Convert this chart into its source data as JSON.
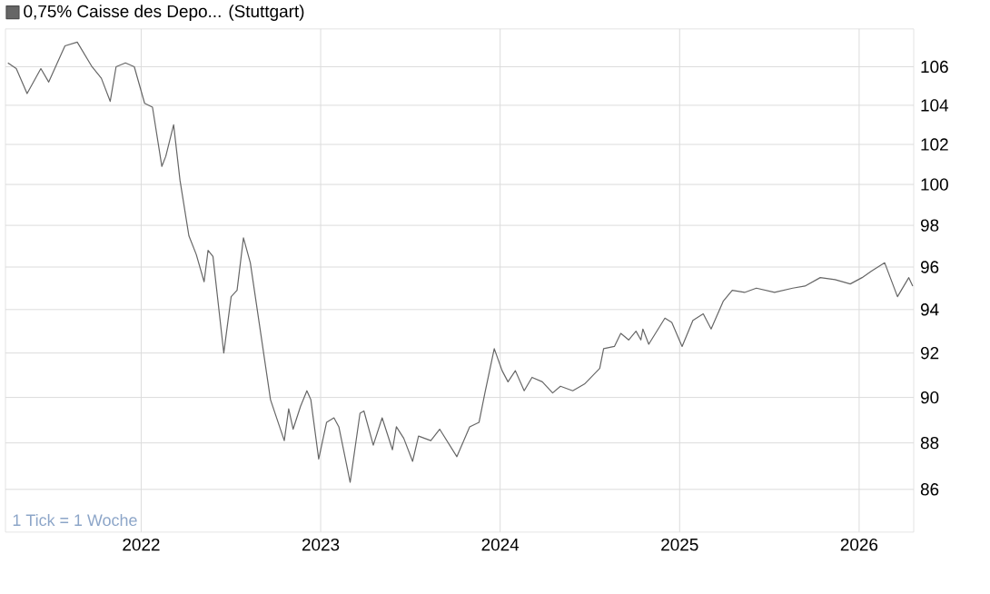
{
  "chart_data": {
    "type": "line",
    "log": "y",
    "grid": true,
    "legend": "top left",
    "annotations": [
      "1 Tick = 1 Woche"
    ],
    "xlim": [
      "2021-03-31",
      "2026-04-22"
    ],
    "ylim": [
      84.2,
      108
    ],
    "xticks": [
      "2022",
      "2023",
      "2024",
      "2025",
      "2026"
    ],
    "yticks": [
      86,
      88,
      90,
      92,
      94,
      96,
      98,
      100,
      102,
      104,
      106
    ],
    "series": [
      {
        "name": "0,75% Caisse des Depo... (Stuttgart)",
        "color": "#666666",
        "x": [
          "2021-04-05",
          "2021-04-22",
          "2021-05-14",
          "2021-06-11",
          "2021-06-27",
          "2021-07-30",
          "2021-08-24",
          "2021-09-23",
          "2021-10-12",
          "2021-10-30",
          "2021-11-11",
          "2021-11-30",
          "2021-12-18",
          "2022-01-08",
          "2022-01-24",
          "2022-02-12",
          "2022-02-20",
          "2022-03-08",
          "2022-03-21",
          "2022-04-08",
          "2022-04-23",
          "2022-05-09",
          "2022-05-17",
          "2022-05-27",
          "2022-06-18",
          "2022-07-03",
          "2022-07-15",
          "2022-07-28",
          "2022-08-11",
          "2022-09-21",
          "2022-10-19",
          "2022-10-28",
          "2022-11-06",
          "2022-11-21",
          "2022-12-04",
          "2022-12-12",
          "2022-12-28",
          "2023-01-13",
          "2023-01-28",
          "2023-02-07",
          "2023-03-02",
          "2023-03-22",
          "2023-03-30",
          "2023-04-18",
          "2023-05-06",
          "2023-05-27",
          "2023-06-04",
          "2023-06-19",
          "2023-07-07",
          "2023-07-19",
          "2023-08-13",
          "2023-08-31",
          "2023-10-05",
          "2023-10-31",
          "2023-11-19",
          "2023-12-01",
          "2023-12-20",
          "2024-01-05",
          "2024-01-17",
          "2024-02-01",
          "2024-02-19",
          "2024-03-06",
          "2024-03-27",
          "2024-04-17",
          "2024-05-03",
          "2024-05-28",
          "2024-06-21",
          "2024-07-22",
          "2024-07-30",
          "2024-08-21",
          "2024-09-03",
          "2024-09-19",
          "2024-10-04",
          "2024-10-14",
          "2024-10-18",
          "2024-10-30",
          "2024-12-02",
          "2024-12-16",
          "2025-01-06",
          "2025-01-28",
          "2025-02-18",
          "2025-03-06",
          "2025-03-31",
          "2025-04-18",
          "2025-05-13",
          "2025-06-06",
          "2025-07-13",
          "2025-08-19",
          "2025-09-13",
          "2025-10-14",
          "2025-11-13",
          "2025-12-14",
          "2026-01-07",
          "2026-01-26",
          "2026-02-22",
          "2026-03-20",
          "2026-04-12",
          "2026-04-20"
        ],
        "values": [
          106.2,
          105.9,
          104.6,
          105.9,
          105.2,
          107.1,
          107.3,
          106.0,
          105.4,
          104.2,
          106.0,
          106.2,
          106.0,
          104.1,
          103.9,
          100.9,
          101.4,
          103.0,
          100.2,
          97.5,
          96.6,
          95.3,
          96.8,
          96.5,
          92.0,
          94.6,
          94.9,
          97.4,
          96.2,
          89.9,
          88.1,
          89.5,
          88.6,
          89.6,
          90.3,
          89.9,
          87.3,
          88.9,
          89.1,
          88.7,
          86.3,
          89.3,
          89.4,
          87.9,
          89.1,
          87.7,
          88.7,
          88.2,
          87.2,
          88.3,
          88.1,
          88.6,
          87.4,
          88.7,
          88.9,
          90.2,
          92.2,
          91.2,
          90.7,
          91.2,
          90.3,
          90.9,
          90.7,
          90.2,
          90.5,
          90.3,
          90.6,
          91.3,
          92.2,
          92.3,
          92.9,
          92.6,
          93.0,
          92.6,
          93.1,
          92.4,
          93.6,
          93.4,
          92.3,
          93.5,
          93.8,
          93.1,
          94.4,
          94.9,
          94.8,
          95.0,
          94.8,
          95.0,
          95.1,
          95.5,
          95.4,
          95.2,
          95.5,
          95.8,
          96.2,
          94.6,
          95.5,
          95.1
        ]
      }
    ]
  }
}
